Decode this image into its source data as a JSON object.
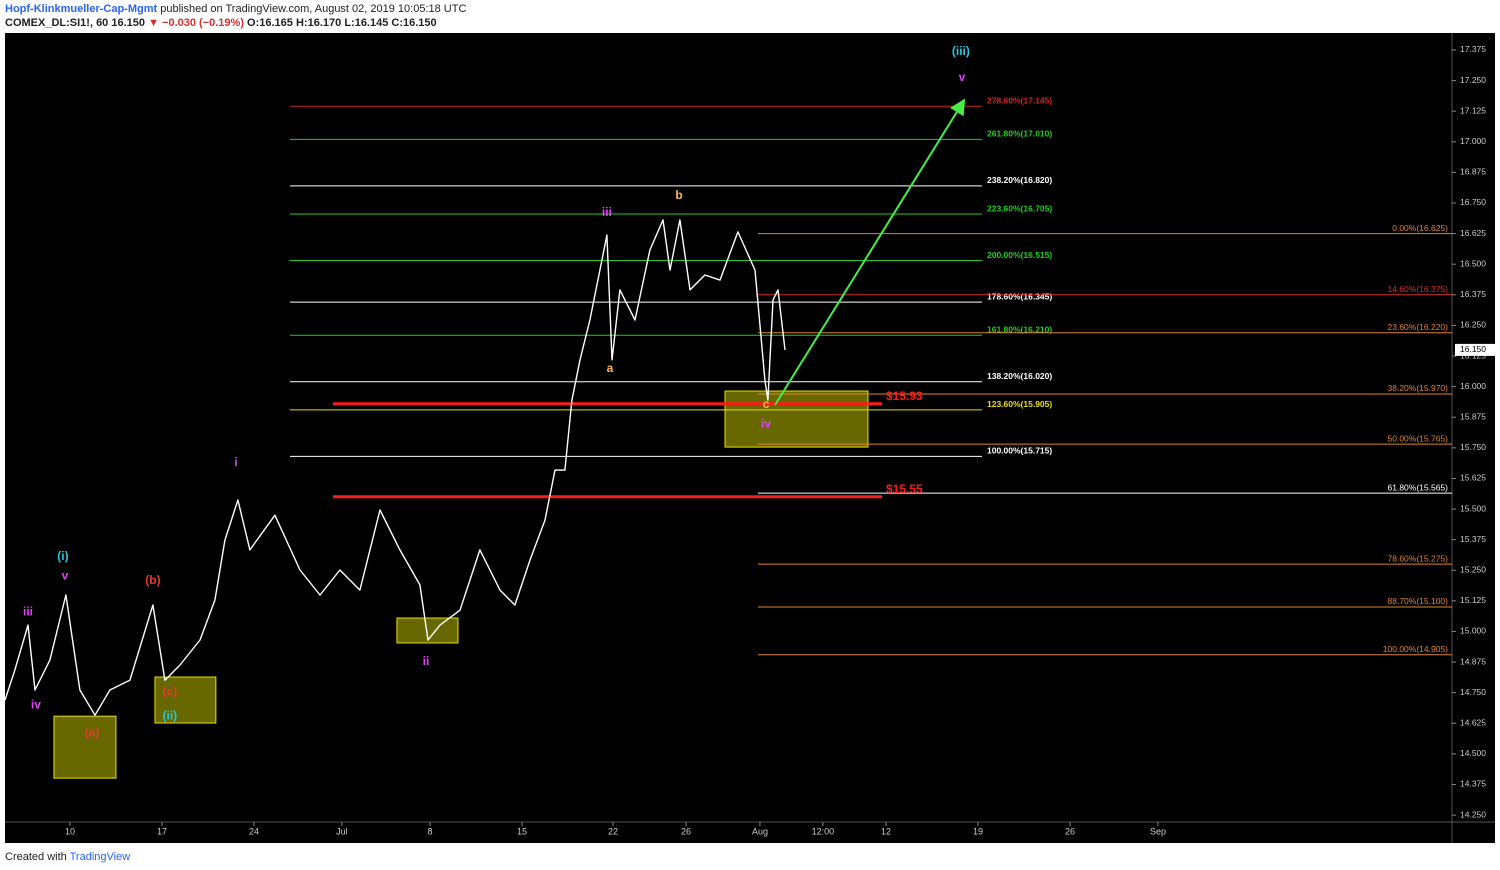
{
  "header": {
    "author": "Hopf-Klinkmueller-Cap-Mgmt",
    "published": "published on TradingView.com, August 02, 2019 10:05:18 UTC",
    "symbol": "COMEX_DL:SI1!, 60",
    "last": "16.150",
    "change": "▼ −0.030 (−0.19%)",
    "ohlc": [
      "O:16.165",
      "H:16.170",
      "L:16.145",
      "C:16.150"
    ]
  },
  "footer": {
    "created": "Created with",
    "brand": "TradingView"
  },
  "chart_data": {
    "type": "line",
    "color": "#ffffff",
    "x": [
      -3.53,
      -3.0,
      -2.28,
      -1.9,
      -1.09,
      -0.22,
      0.54,
      1.36,
      2.17,
      3.26,
      4.51,
      5.16,
      5.98,
      7.07,
      7.88,
      8.42,
      9.13,
      9.78,
      11.14,
      12.5,
      13.59,
      14.67,
      15.76,
      16.85,
      17.93,
      19.02,
      19.46,
      20.11,
      21.2,
      22.28,
      23.37,
      24.18,
      25.0,
      25.82,
      26.36,
      26.9,
      27.28,
      27.72,
      28.26,
      28.8,
      29.18,
      29.46,
      29.89,
      30.71,
      31.52,
      32.23,
      32.61,
      33.15,
      33.7,
      34.51,
      35.33,
      36.3,
      37.23,
      37.77,
      37.93,
      38.21,
      38.48,
      38.86
    ],
    "values": [
      14.72,
      14.842,
      15.026,
      14.761,
      14.883,
      15.149,
      14.761,
      14.658,
      14.761,
      14.801,
      15.108,
      14.801,
      14.863,
      14.965,
      15.128,
      15.373,
      15.537,
      15.333,
      15.475,
      15.251,
      15.149,
      15.251,
      15.169,
      15.496,
      15.333,
      15.19,
      14.965,
      15.026,
      15.087,
      15.333,
      15.169,
      15.108,
      15.292,
      15.455,
      15.659,
      15.659,
      15.945,
      16.109,
      16.272,
      16.476,
      16.619,
      16.109,
      16.395,
      16.272,
      16.558,
      16.681,
      16.476,
      16.681,
      16.395,
      16.456,
      16.435,
      16.632,
      16.476,
      16.027,
      15.945,
      16.354,
      16.395,
      16.15
    ],
    "xlim": [
      -3.53,
      75.11
    ],
    "ylim": [
      14.23,
      17.432
    ],
    "xticks": [
      {
        "value": 0,
        "label": "10"
      },
      {
        "value": 5,
        "label": "17"
      },
      {
        "value": 10,
        "label": "24"
      },
      {
        "value": 14.78,
        "label": "Jul"
      },
      {
        "value": 19.57,
        "label": "8"
      },
      {
        "value": 24.57,
        "label": "15"
      },
      {
        "value": 29.51,
        "label": "22"
      },
      {
        "value": 33.48,
        "label": "26"
      },
      {
        "value": 37.5,
        "label": "Aug"
      },
      {
        "value": 40.92,
        "label": "12:00"
      },
      {
        "value": 44.35,
        "label": "12"
      },
      {
        "value": 49.35,
        "label": "19"
      },
      {
        "value": 54.35,
        "label": "26"
      },
      {
        "value": 59.13,
        "label": "Sep"
      }
    ],
    "yticks": [
      {
        "value": 14.25,
        "label": "14.250"
      },
      {
        "value": 14.375,
        "label": "14.375"
      },
      {
        "value": 14.5,
        "label": "14.500"
      },
      {
        "value": 14.625,
        "label": "14.625"
      },
      {
        "value": 14.75,
        "label": "14.750"
      },
      {
        "value": 14.875,
        "label": "14.875"
      },
      {
        "value": 15,
        "label": "15.000"
      },
      {
        "value": 15.125,
        "label": "15.125"
      },
      {
        "value": 15.25,
        "label": "15.250"
      },
      {
        "value": 15.375,
        "label": "15.375"
      },
      {
        "value": 15.5,
        "label": "15.500"
      },
      {
        "value": 15.625,
        "label": "15.625"
      },
      {
        "value": 15.75,
        "label": "15.750"
      },
      {
        "value": 15.875,
        "label": "15.875"
      },
      {
        "value": 16,
        "label": "16.000"
      },
      {
        "value": 16.125,
        "label": "16.125"
      },
      {
        "value": 16.25,
        "label": "16.250"
      },
      {
        "value": 16.375,
        "label": "16.375"
      },
      {
        "value": 16.5,
        "label": "16.500"
      },
      {
        "value": 16.625,
        "label": "16.625"
      },
      {
        "value": 16.75,
        "label": "16.750"
      },
      {
        "value": 16.875,
        "label": "16.875"
      },
      {
        "value": 17,
        "label": "17.000"
      },
      {
        "value": 17.125,
        "label": "17.125"
      },
      {
        "value": 17.25,
        "label": "17.250"
      },
      {
        "value": 17.375,
        "label": "17.375"
      }
    ],
    "last_price": {
      "value": 16.15,
      "label": "16.150"
    },
    "fib_extension": [
      {
        "label": "278.60%(17.145)",
        "value": 17.145,
        "color": "#c62828"
      },
      {
        "label": "261.80%(17.010)",
        "value": 17.01,
        "color": "#22cc22"
      },
      {
        "label": "238.20%(16.820)",
        "value": 16.82,
        "color": "#ffffff"
      },
      {
        "label": "223.60%(16.705)",
        "value": 16.705,
        "color": "#22cc22"
      },
      {
        "label": "200.00%(16.515)",
        "value": 16.515,
        "color": "#22cc22"
      },
      {
        "label": "178.60%(16.345)",
        "value": 16.345,
        "color": "#ffffff"
      },
      {
        "label": "161.80%(16.210)",
        "value": 16.21,
        "color": "#22cc22"
      },
      {
        "label": "138.20%(16.020)",
        "value": 16.02,
        "color": "#ffffff"
      },
      {
        "label": "123.60%(15.905)",
        "value": 15.905,
        "color": "#e8e000"
      },
      {
        "label": "100.00%(15.715)",
        "value": 15.715,
        "color": "#ffffff"
      }
    ],
    "fib_retracement": [
      {
        "label": "0.00%(16.625)",
        "value": 16.625,
        "color": "#e0832a"
      },
      {
        "label": "14.60%(16.375)",
        "value": 16.375,
        "color": "#d32f2f"
      },
      {
        "label": "23.60%(16.220)",
        "value": 16.22,
        "color": "#e0832a"
      },
      {
        "label": "38.20%(15.970)",
        "value": 15.97,
        "color": "#e0832a"
      },
      {
        "label": "50.00%(15.765)",
        "value": 15.765,
        "color": "#e0832a"
      },
      {
        "label": "61.80%(15.565)",
        "value": 15.565,
        "color": "#ffffff"
      },
      {
        "label": "78.60%(15.275)",
        "value": 15.275,
        "color": "#e0832a"
      },
      {
        "label": "88.70%(15.100)",
        "value": 15.1,
        "color": "#e0832a"
      },
      {
        "label": "100.00%(14.905)",
        "value": 14.905,
        "color": "#e0832a"
      }
    ],
    "levels": [
      {
        "label": "$15.93",
        "value": 15.93,
        "color": "#ff1a1a"
      },
      {
        "label": "$15.55",
        "value": 15.55,
        "color": "#ff1a1a"
      }
    ],
    "zones": [
      {
        "x": [
          -0.87,
          2.5
        ],
        "y": [
          14.401,
          14.654
        ]
      },
      {
        "x": [
          4.62,
          7.93
        ],
        "y": [
          14.626,
          14.814
        ]
      },
      {
        "x": [
          17.77,
          21.09
        ],
        "y": [
          14.953,
          15.055
        ]
      },
      {
        "x": [
          35.6,
          43.37
        ],
        "y": [
          15.753,
          15.982
        ]
      }
    ],
    "arrow": {
      "x": [
        38.32,
        48.54
      ],
      "y": [
        15.925,
        17.163
      ],
      "color": "#44ee44"
    },
    "annotations": [
      {
        "text": "iii",
        "color": "#e040fb",
        "x": -2.28,
        "y": 15.079
      },
      {
        "text": "iv",
        "color": "#e040fb",
        "x": -1.85,
        "y": 14.699
      },
      {
        "text": "(i)",
        "color": "#26c6da",
        "x": -0.38,
        "y": 15.304
      },
      {
        "text": "v",
        "color": "#e040fb",
        "x": -0.27,
        "y": 15.226
      },
      {
        "text": "(a)",
        "color": "#e53935",
        "x": 1.2,
        "y": 14.585
      },
      {
        "text": "(b)",
        "color": "#e53935",
        "x": 4.51,
        "y": 15.206
      },
      {
        "text": "(c)",
        "color": "#e53935",
        "x": 5.43,
        "y": 14.752
      },
      {
        "text": "(ii)",
        "color": "#26c6da",
        "x": 5.43,
        "y": 14.654
      },
      {
        "text": "i",
        "color": "#e040fb",
        "x": 9.02,
        "y": 15.688
      },
      {
        "text": "ii",
        "color": "#e040fb",
        "x": 19.35,
        "y": 14.875
      },
      {
        "text": "iii",
        "color": "#e040fb",
        "x": 29.18,
        "y": 16.709
      },
      {
        "text": "a",
        "color": "#ffb74d",
        "x": 29.35,
        "y": 16.072
      },
      {
        "text": "b",
        "color": "#ffb74d",
        "x": 33.1,
        "y": 16.779
      },
      {
        "text": "c",
        "color": "#ffb74d",
        "x": 37.83,
        "y": 15.925
      },
      {
        "text": "iv",
        "color": "#e040fb",
        "x": 37.83,
        "y": 15.847
      },
      {
        "text": "(iii)",
        "color": "#26c6da",
        "x": 48.42,
        "y": 17.367
      },
      {
        "text": "v",
        "color": "#e040fb",
        "x": 48.48,
        "y": 17.261
      }
    ]
  }
}
